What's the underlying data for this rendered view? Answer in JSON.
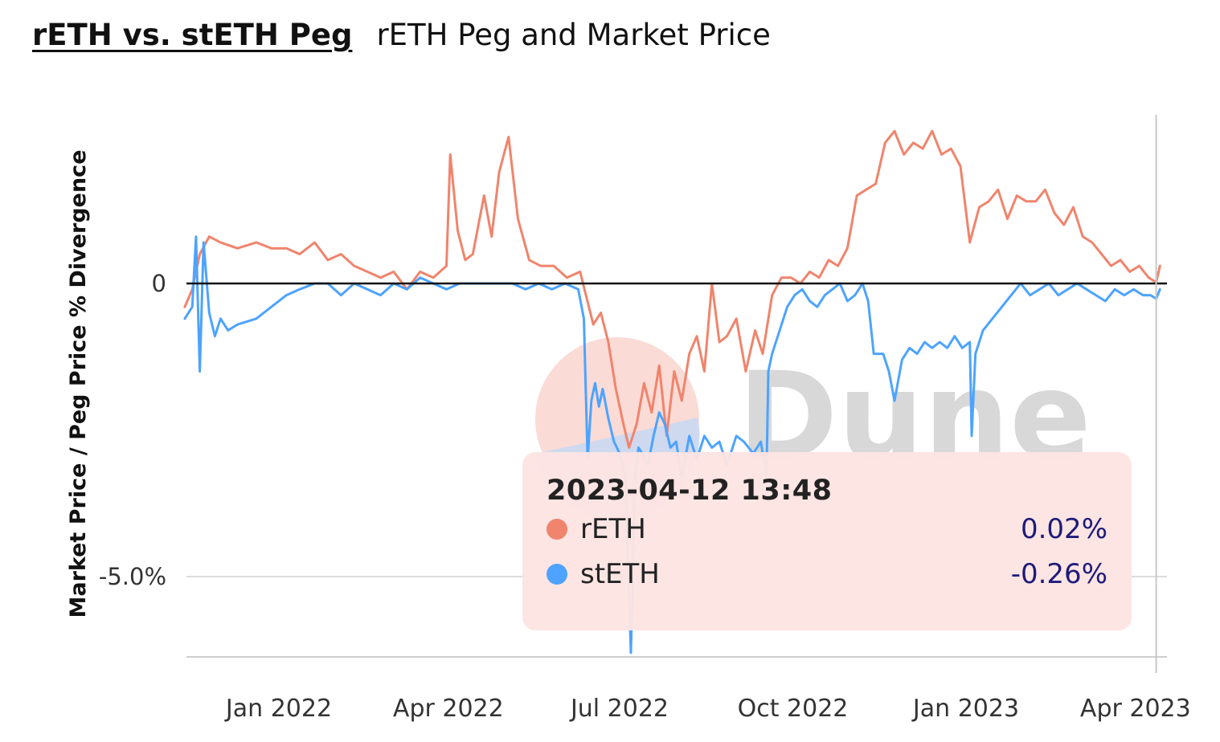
{
  "header": {
    "title": "rETH vs. stETH Peg",
    "subtitle": "rETH Peg and Market Price"
  },
  "colors": {
    "reth": "#f0846c",
    "steth": "#4da3ff",
    "zero_line": "#111111",
    "grid": "#dcdcdc",
    "watermark": "#d8d8d8"
  },
  "watermark": "Dune",
  "tooltip": {
    "timestamp": "2023-04-12 13:48",
    "rows": [
      {
        "name": "rETH",
        "value": "0.02%"
      },
      {
        "name": "stETH",
        "value": "-0.26%"
      }
    ]
  },
  "chart_data": {
    "type": "line",
    "title": "rETH Peg and Market Price",
    "xlabel": "",
    "ylabel": "Market Price / Peg Price % Divergence",
    "x_ticks": [
      "Jan 2022",
      "Apr 2022",
      "Jul 2022",
      "Oct 2022",
      "Jan 2023",
      "Apr 2023"
    ],
    "y_ticks": [
      {
        "value": 0,
        "label": "0"
      },
      {
        "value": -5.0,
        "label": "-5.0%"
      }
    ],
    "x_range": [
      "2021-11-12",
      "2023-04-14"
    ],
    "ylim": [
      -6.4,
      2.9
    ],
    "cursor_date": "2023-04-12",
    "series": [
      {
        "name": "rETH",
        "x": [
          "2021-11-12",
          "2021-11-16",
          "2021-11-20",
          "2021-11-25",
          "2021-12-01",
          "2021-12-10",
          "2021-12-20",
          "2021-12-28",
          "2022-01-05",
          "2022-01-12",
          "2022-01-20",
          "2022-01-27",
          "2022-02-03",
          "2022-02-10",
          "2022-02-17",
          "2022-02-24",
          "2022-03-03",
          "2022-03-10",
          "2022-03-17",
          "2022-03-24",
          "2022-03-31",
          "2022-04-02",
          "2022-04-06",
          "2022-04-10",
          "2022-04-14",
          "2022-04-20",
          "2022-04-24",
          "2022-04-28",
          "2022-05-03",
          "2022-05-08",
          "2022-05-14",
          "2022-05-20",
          "2022-05-27",
          "2022-06-03",
          "2022-06-10",
          "2022-06-17",
          "2022-06-21",
          "2022-06-25",
          "2022-06-29",
          "2022-07-03",
          "2022-07-06",
          "2022-07-10",
          "2022-07-14",
          "2022-07-18",
          "2022-07-22",
          "2022-07-26",
          "2022-07-30",
          "2022-08-03",
          "2022-08-07",
          "2022-08-11",
          "2022-08-15",
          "2022-08-19",
          "2022-08-23",
          "2022-08-27",
          "2022-09-01",
          "2022-09-06",
          "2022-09-11",
          "2022-09-15",
          "2022-09-20",
          "2022-09-25",
          "2022-09-30",
          "2022-10-05",
          "2022-10-10",
          "2022-10-15",
          "2022-10-20",
          "2022-10-25",
          "2022-10-30",
          "2022-11-04",
          "2022-11-09",
          "2022-11-14",
          "2022-11-19",
          "2022-11-24",
          "2022-11-29",
          "2022-12-04",
          "2022-12-09",
          "2022-12-14",
          "2022-12-19",
          "2022-12-24",
          "2022-12-29",
          "2023-01-03",
          "2023-01-08",
          "2023-01-13",
          "2023-01-18",
          "2023-01-23",
          "2023-01-28",
          "2023-02-02",
          "2023-02-07",
          "2023-02-12",
          "2023-02-17",
          "2023-02-22",
          "2023-02-27",
          "2023-03-04",
          "2023-03-09",
          "2023-03-14",
          "2023-03-19",
          "2023-03-24",
          "2023-03-29",
          "2023-04-03",
          "2023-04-08",
          "2023-04-12",
          "2023-04-14"
        ],
        "values": [
          -0.4,
          -0.1,
          0.5,
          0.8,
          0.7,
          0.6,
          0.7,
          0.6,
          0.6,
          0.5,
          0.7,
          0.4,
          0.5,
          0.3,
          0.2,
          0.1,
          0.2,
          -0.1,
          0.2,
          0.1,
          0.3,
          2.2,
          0.9,
          0.4,
          0.5,
          1.5,
          0.8,
          1.9,
          2.5,
          1.1,
          0.4,
          0.3,
          0.3,
          0.1,
          0.2,
          -0.7,
          -0.5,
          -1.0,
          -1.8,
          -2.4,
          -2.8,
          -2.4,
          -1.7,
          -2.2,
          -1.4,
          -2.6,
          -1.5,
          -2.0,
          -1.2,
          -0.9,
          -1.5,
          0.0,
          -1.0,
          -0.9,
          -0.6,
          -1.5,
          -0.8,
          -1.2,
          -0.2,
          0.1,
          0.1,
          0.0,
          0.2,
          0.1,
          0.4,
          0.3,
          0.6,
          1.5,
          1.6,
          1.7,
          2.4,
          2.6,
          2.2,
          2.4,
          2.3,
          2.6,
          2.2,
          2.3,
          2.0,
          0.7,
          1.3,
          1.4,
          1.6,
          1.1,
          1.5,
          1.4,
          1.4,
          1.6,
          1.2,
          1.0,
          1.3,
          0.8,
          0.7,
          0.5,
          0.3,
          0.4,
          0.2,
          0.3,
          0.1,
          0.02,
          0.3
        ]
      },
      {
        "name": "stETH",
        "x": [
          "2021-11-12",
          "2021-11-16",
          "2021-11-18",
          "2021-11-20",
          "2021-11-22",
          "2021-11-25",
          "2021-11-28",
          "2021-12-01",
          "2021-12-05",
          "2021-12-10",
          "2021-12-20",
          "2021-12-28",
          "2022-01-05",
          "2022-01-12",
          "2022-01-20",
          "2022-01-27",
          "2022-02-03",
          "2022-02-10",
          "2022-02-17",
          "2022-02-24",
          "2022-03-03",
          "2022-03-10",
          "2022-03-17",
          "2022-03-24",
          "2022-03-31",
          "2022-04-07",
          "2022-04-14",
          "2022-04-21",
          "2022-04-28",
          "2022-05-05",
          "2022-05-12",
          "2022-05-19",
          "2022-05-26",
          "2022-06-02",
          "2022-06-09",
          "2022-06-12",
          "2022-06-13",
          "2022-06-14",
          "2022-06-16",
          "2022-06-18",
          "2022-06-20",
          "2022-06-22",
          "2022-06-25",
          "2022-06-28",
          "2022-07-01",
          "2022-07-04",
          "2022-07-07",
          "2022-07-09",
          "2022-07-11",
          "2022-07-13",
          "2022-07-16",
          "2022-07-19",
          "2022-07-22",
          "2022-07-25",
          "2022-07-28",
          "2022-07-31",
          "2022-08-03",
          "2022-08-07",
          "2022-08-11",
          "2022-08-15",
          "2022-08-19",
          "2022-08-23",
          "2022-08-27",
          "2022-09-01",
          "2022-09-05",
          "2022-09-10",
          "2022-09-14",
          "2022-09-17",
          "2022-09-18",
          "2022-09-20",
          "2022-09-24",
          "2022-09-28",
          "2022-10-02",
          "2022-10-06",
          "2022-10-10",
          "2022-10-14",
          "2022-10-18",
          "2022-10-22",
          "2022-10-26",
          "2022-10-30",
          "2022-11-03",
          "2022-11-07",
          "2022-11-10",
          "2022-11-13",
          "2022-11-18",
          "2022-11-21",
          "2022-11-24",
          "2022-11-28",
          "2022-12-02",
          "2022-12-06",
          "2022-12-10",
          "2022-12-14",
          "2022-12-18",
          "2022-12-22",
          "2022-12-26",
          "2022-12-30",
          "2023-01-03",
          "2023-01-04",
          "2023-01-06",
          "2023-01-10",
          "2023-01-15",
          "2023-01-20",
          "2023-01-25",
          "2023-01-30",
          "2023-02-04",
          "2023-02-09",
          "2023-02-14",
          "2023-02-19",
          "2023-02-24",
          "2023-03-01",
          "2023-03-06",
          "2023-03-11",
          "2023-03-16",
          "2023-03-21",
          "2023-03-26",
          "2023-03-31",
          "2023-04-05",
          "2023-04-09",
          "2023-04-12",
          "2023-04-14"
        ],
        "values": [
          -0.6,
          -0.4,
          0.8,
          -1.5,
          0.7,
          -0.5,
          -0.9,
          -0.6,
          -0.8,
          -0.7,
          -0.6,
          -0.4,
          -0.2,
          -0.1,
          0.0,
          0.0,
          -0.2,
          0.0,
          -0.1,
          -0.2,
          0.0,
          -0.1,
          0.1,
          0.0,
          -0.1,
          0.0,
          0.0,
          0.0,
          0.0,
          0.0,
          -0.1,
          0.0,
          -0.1,
          0.0,
          -0.1,
          -0.6,
          -1.8,
          -3.0,
          -2.0,
          -1.7,
          -2.1,
          -1.8,
          -2.3,
          -2.7,
          -2.9,
          -3.3,
          -6.3,
          -3.4,
          -2.8,
          -2.9,
          -3.1,
          -2.6,
          -2.2,
          -2.4,
          -2.8,
          -2.7,
          -3.3,
          -2.6,
          -3.0,
          -2.6,
          -2.8,
          -2.7,
          -3.1,
          -2.6,
          -2.7,
          -2.9,
          -2.7,
          -3.3,
          -1.5,
          -1.2,
          -0.8,
          -0.4,
          -0.2,
          -0.1,
          -0.3,
          -0.4,
          -0.2,
          -0.1,
          0.0,
          -0.3,
          -0.2,
          0.0,
          -0.3,
          -1.2,
          -1.2,
          -1.5,
          -2.0,
          -1.3,
          -1.1,
          -1.2,
          -1.0,
          -1.1,
          -1.0,
          -1.1,
          -0.9,
          -1.1,
          -1.0,
          -2.6,
          -1.2,
          -0.8,
          -0.6,
          -0.4,
          -0.2,
          0.0,
          -0.2,
          -0.1,
          0.0,
          -0.2,
          -0.1,
          0.0,
          -0.1,
          -0.2,
          -0.3,
          -0.1,
          -0.2,
          -0.1,
          -0.2,
          -0.2,
          -0.26,
          -0.1
        ]
      }
    ]
  }
}
